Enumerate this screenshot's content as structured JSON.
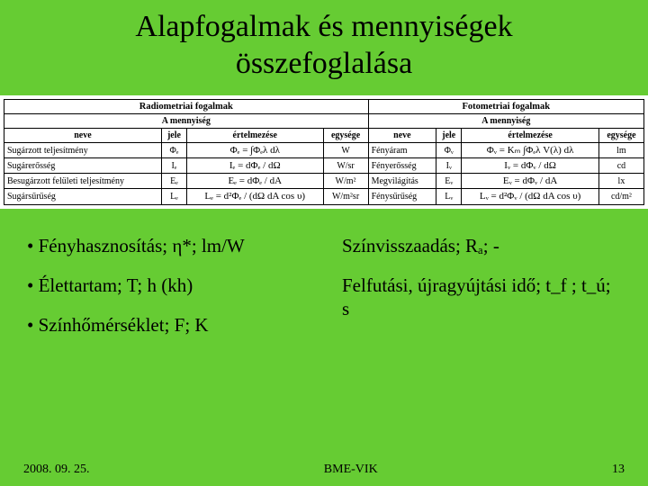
{
  "title_line1": "Alapfogalmak és mennyiségek",
  "title_line2": "összefoglalása",
  "table": {
    "group_left": "Radiometriai fogalmak",
    "group_right": "Fotometriai fogalmak",
    "sub_quantity": "A mennyiség",
    "h_name": "neve",
    "h_sym": "jele",
    "h_def": "értelmezése",
    "h_unit": "egysége",
    "rows": [
      {
        "l_name": "Sugárzott teljesítmény",
        "l_sym": "Φₑ",
        "l_def": "Φₑ = ∫Φₑλ dλ",
        "l_unit": "W",
        "r_name": "Fényáram",
        "r_sym": "Φᵥ",
        "r_def": "Φᵥ = Kₘ ∫Φₑλ V(λ) dλ",
        "r_unit": "lm"
      },
      {
        "l_name": "Sugárerősség",
        "l_sym": "Iₑ",
        "l_def": "Iₑ = dΦₑ / dΩ",
        "l_unit": "W/sr",
        "r_name": "Fényerősség",
        "r_sym": "Iᵥ",
        "r_def": "Iᵥ = dΦᵥ / dΩ",
        "r_unit": "cd"
      },
      {
        "l_name": "Besugárzott felületi teljesítmény",
        "l_sym": "Eₑ",
        "l_def": "Eₑ = dΦₑ / dA",
        "l_unit": "W/m²",
        "r_name": "Megvilágítás",
        "r_sym": "Eᵥ",
        "r_def": "Eᵥ = dΦᵥ / dA",
        "r_unit": "lx"
      },
      {
        "l_name": "Sugársűrűség",
        "l_sym": "Lₑ",
        "l_def": "Lₑ = d²Φₑ / (dΩ dA cos υ)",
        "l_unit": "W/m²sr",
        "r_name": "Fénysűrűség",
        "r_sym": "Lᵥ",
        "r_def": "Lᵥ = d²Φᵥ / (dΩ dA cos υ)",
        "r_unit": "cd/m²"
      }
    ]
  },
  "bullets": {
    "left": [
      "• Fényhasznosítás; η*; lm/W",
      "• Élettartam; T; h (kh)",
      "• Színhőmérséklet; F; K"
    ],
    "right": [
      "Színvisszaadás; Rₐ; -",
      "Felfutási, újragyújtási idő; t_f ; t_ú; s"
    ]
  },
  "footer": {
    "date": "2008. 09. 25.",
    "center": "BME-VIK",
    "page": "13"
  }
}
